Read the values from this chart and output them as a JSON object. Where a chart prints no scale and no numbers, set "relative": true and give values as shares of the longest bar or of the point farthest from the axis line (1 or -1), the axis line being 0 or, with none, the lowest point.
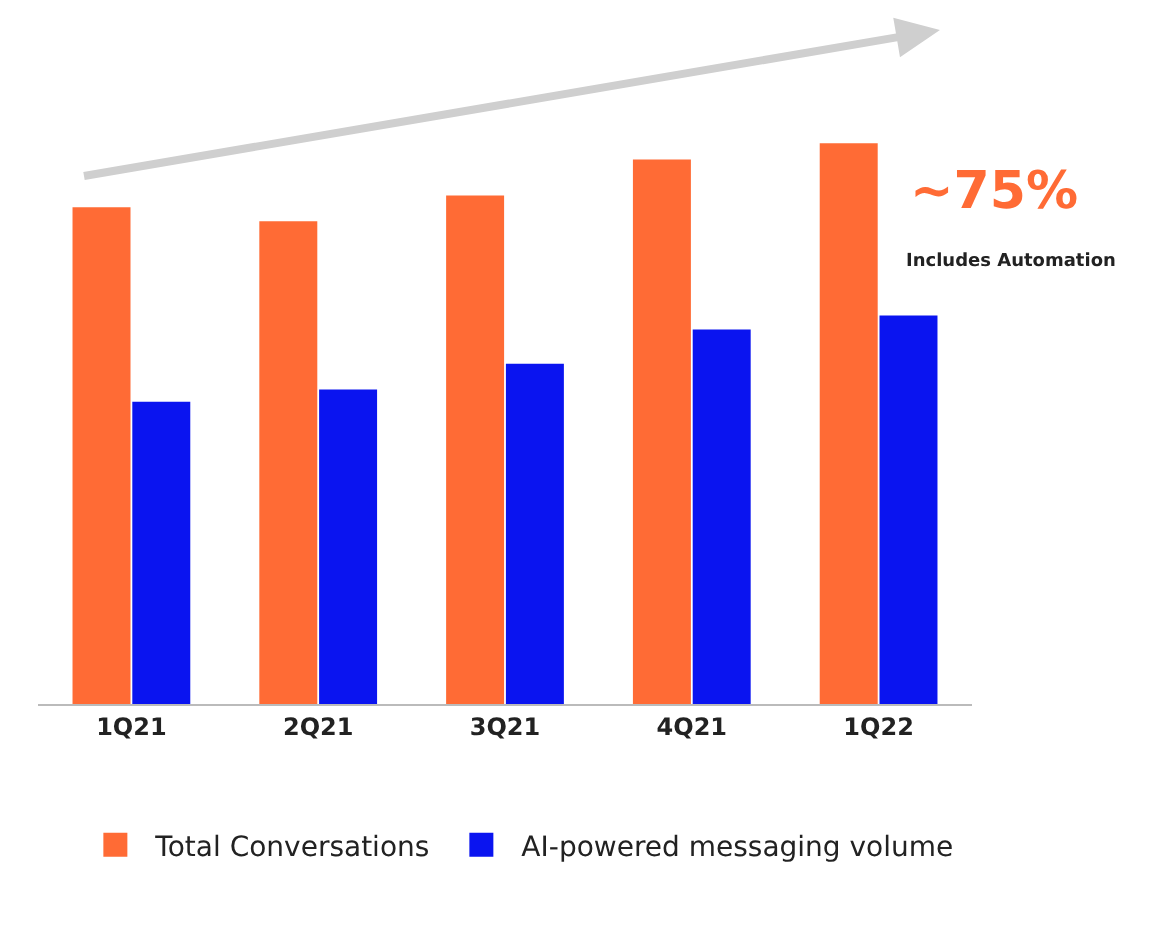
{
  "chart_data": {
    "type": "bar",
    "relative": true,
    "categories": [
      "1Q21",
      "2Q21",
      "3Q21",
      "4Q21",
      "1Q22"
    ],
    "series": [
      {
        "name": "Total Conversations",
        "color": "#ff6b35",
        "values": [
          0.886,
          0.861,
          0.907,
          0.971,
          1
        ]
      },
      {
        "name": "AI-powered messaging volume",
        "color": "#0a14f0",
        "values": [
          0.539,
          0.561,
          0.607,
          0.668,
          0.693
        ]
      }
    ],
    "annotations": [
      "~75%",
      "Includes Automation"
    ],
    "legend": "bottom"
  }
}
